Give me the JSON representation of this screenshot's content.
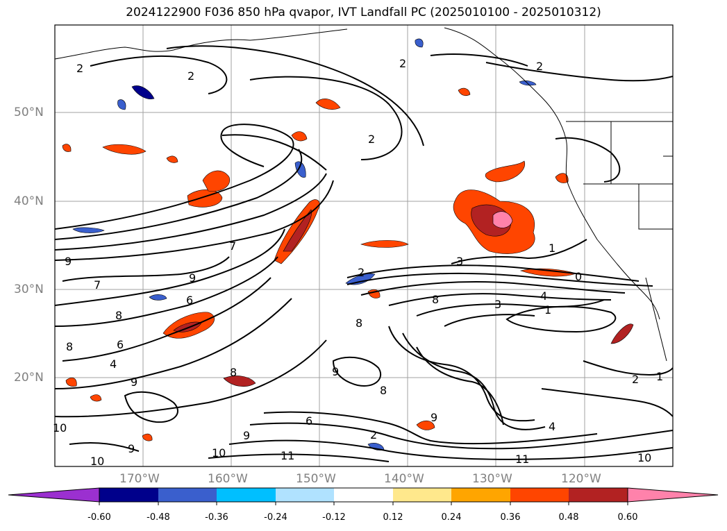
{
  "title": "2024122900 F036 850 hPa qvapor, IVT Landfall PC (2025010100 - 2025010312)",
  "lat_labels": [
    "50°N",
    "40°N",
    "30°N",
    "20°N"
  ],
  "lon_labels": [
    "170°W",
    "160°W",
    "150°W",
    "140°W",
    "130°W",
    "120°W"
  ],
  "contour_labels": [
    "2",
    "2",
    "2",
    "2",
    "2",
    "2",
    "2",
    "3",
    "7",
    "9",
    "9",
    "6",
    "7",
    "8",
    "8",
    "6",
    "4",
    "8",
    "9",
    "10",
    "9",
    "10",
    "11",
    "9",
    "8",
    "4",
    "1",
    "1",
    "0",
    "3",
    "8",
    "9",
    "8",
    "9",
    "6",
    "4",
    "2",
    "1",
    "10",
    "11",
    "10"
  ],
  "colorbar": {
    "ticks": [
      "-0.60",
      "-0.48",
      "-0.36",
      "-0.24",
      "-0.12",
      "0.12",
      "0.24",
      "0.36",
      "0.48",
      "0.60"
    ],
    "colors": [
      "#9b30d0",
      "#00008b",
      "#3a5fcd",
      "#00bfff",
      "#b0e2ff",
      "#ffffff",
      "#ffe88c",
      "#ffa500",
      "#ff4500",
      "#b22222",
      "#ff82ab"
    ]
  }
}
